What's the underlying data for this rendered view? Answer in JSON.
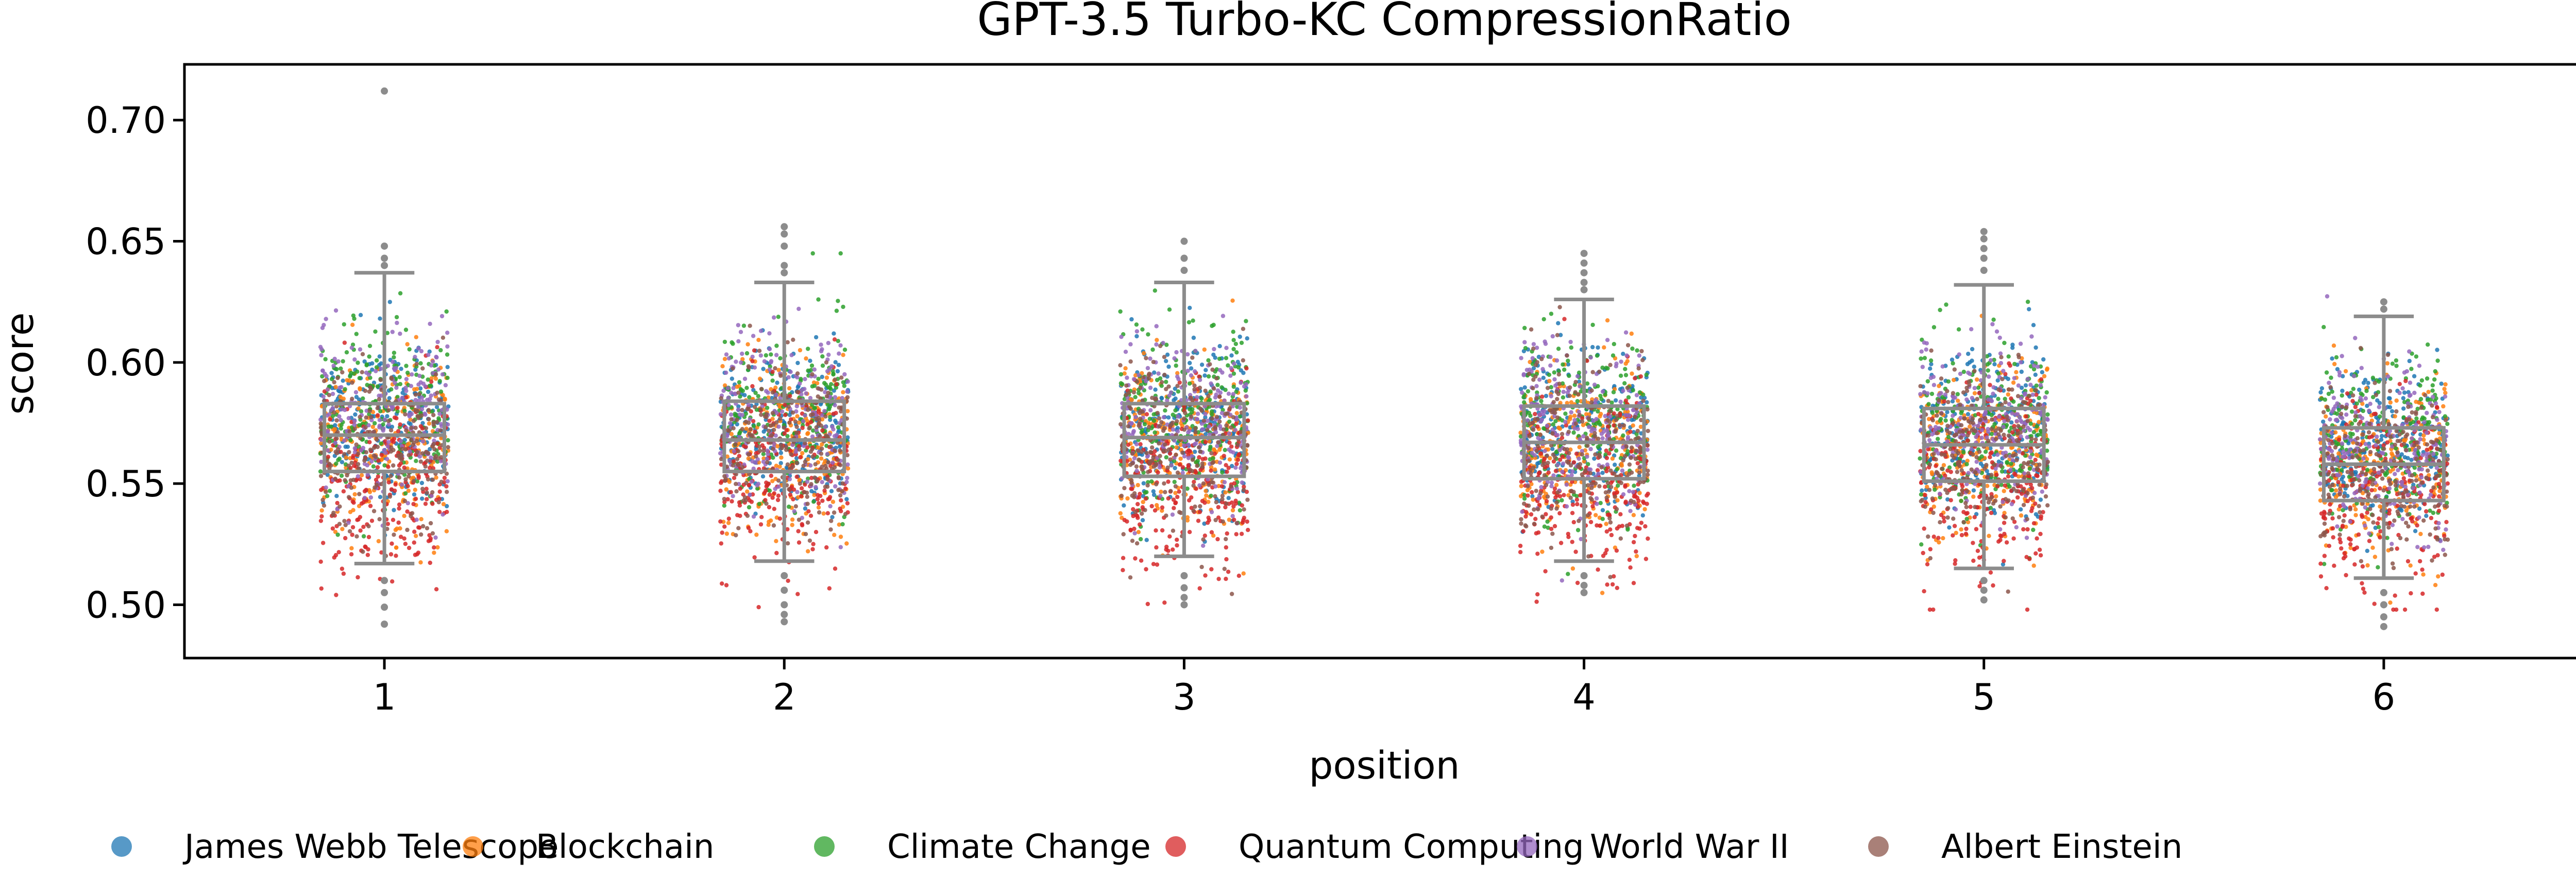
{
  "chart_data": {
    "type": "box-strip",
    "title": "GPT-3.5 Turbo-KC CompressionRatio",
    "xlabel": "position",
    "ylabel": "score",
    "categories": [
      "1",
      "2",
      "3",
      "4",
      "5",
      "6"
    ],
    "xlim": [
      0.5,
      6.5
    ],
    "ylim": [
      0.478,
      0.723
    ],
    "yticks": [
      {
        "value": 0.5,
        "label": "0.50"
      },
      {
        "value": 0.55,
        "label": "0.55"
      },
      {
        "value": 0.6,
        "label": "0.60"
      },
      {
        "value": 0.65,
        "label": "0.65"
      },
      {
        "value": 0.7,
        "label": "0.70"
      }
    ],
    "grid": false,
    "legend_position": "bottom",
    "boxplot_color": "#8c8c8c",
    "boxes": [
      {
        "position": "1",
        "q1": 0.555,
        "median": 0.57,
        "q3": 0.583,
        "whisker_low": 0.517,
        "whisker_high": 0.637,
        "outliers": [
          0.712,
          0.648,
          0.643,
          0.64,
          0.51,
          0.505,
          0.499,
          0.492
        ]
      },
      {
        "position": "2",
        "q1": 0.555,
        "median": 0.568,
        "q3": 0.584,
        "whisker_low": 0.518,
        "whisker_high": 0.633,
        "outliers": [
          0.656,
          0.653,
          0.648,
          0.64,
          0.637,
          0.512,
          0.506,
          0.5,
          0.496,
          0.493
        ]
      },
      {
        "position": "3",
        "q1": 0.553,
        "median": 0.569,
        "q3": 0.583,
        "whisker_low": 0.52,
        "whisker_high": 0.633,
        "outliers": [
          0.65,
          0.643,
          0.638,
          0.512,
          0.507,
          0.503,
          0.5
        ]
      },
      {
        "position": "4",
        "q1": 0.552,
        "median": 0.567,
        "q3": 0.582,
        "whisker_low": 0.518,
        "whisker_high": 0.626,
        "outliers": [
          0.645,
          0.641,
          0.637,
          0.633,
          0.63,
          0.512,
          0.508,
          0.505
        ]
      },
      {
        "position": "5",
        "q1": 0.551,
        "median": 0.566,
        "q3": 0.581,
        "whisker_low": 0.515,
        "whisker_high": 0.632,
        "outliers": [
          0.654,
          0.651,
          0.647,
          0.643,
          0.638,
          0.51,
          0.506,
          0.502
        ]
      },
      {
        "position": "6",
        "q1": 0.543,
        "median": 0.558,
        "q3": 0.573,
        "whisker_low": 0.511,
        "whisker_high": 0.619,
        "outliers": [
          0.625,
          0.622,
          0.505,
          0.5,
          0.495,
          0.491
        ]
      }
    ],
    "series": [
      {
        "name": "James Webb Telescope",
        "color": "#1f77b4",
        "center_by_position": [
          0.575,
          0.576,
          0.575,
          0.573,
          0.572,
          0.566
        ],
        "spread": 0.018,
        "points_per_position": 220
      },
      {
        "name": "Blockchain",
        "color": "#ff7f0e",
        "center_by_position": [
          0.568,
          0.566,
          0.567,
          0.565,
          0.564,
          0.556
        ],
        "spread": 0.018,
        "points_per_position": 220
      },
      {
        "name": "Climate Change",
        "color": "#2ca02c",
        "center_by_position": [
          0.58,
          0.578,
          0.578,
          0.576,
          0.575,
          0.567
        ],
        "spread": 0.018,
        "points_per_position": 220
      },
      {
        "name": "Quantum Computing",
        "color": "#d62728",
        "center_by_position": [
          0.548,
          0.552,
          0.551,
          0.55,
          0.549,
          0.544
        ],
        "spread": 0.02,
        "points_per_position": 220
      },
      {
        "name": "World War II",
        "color": "#9467bd",
        "center_by_position": [
          0.577,
          0.577,
          0.576,
          0.575,
          0.574,
          0.565
        ],
        "spread": 0.018,
        "points_per_position": 220
      },
      {
        "name": "Albert Einstein",
        "color": "#8c564b",
        "center_by_position": [
          0.566,
          0.565,
          0.566,
          0.564,
          0.563,
          0.555
        ],
        "spread": 0.018,
        "points_per_position": 220
      }
    ]
  }
}
